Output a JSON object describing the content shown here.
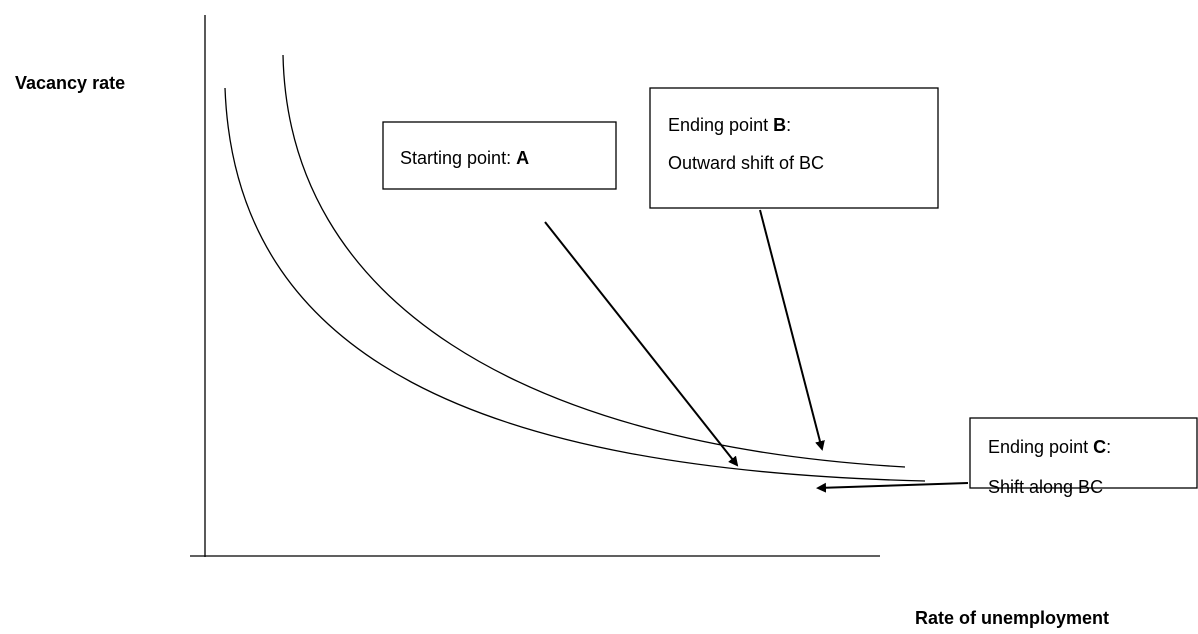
{
  "axes": {
    "y_label": "Vacancy rate",
    "x_label": "Rate of unemployment"
  },
  "boxes": [
    {
      "prefix": "Starting point: ",
      "point": "A"
    },
    {
      "prefix": "Ending point ",
      "point": "B",
      "suffix": ":",
      "line2": "Outward shift of BC"
    },
    {
      "prefix": "Ending point ",
      "point": "C",
      "suffix": ":",
      "line2": "Shift along BC"
    }
  ]
}
